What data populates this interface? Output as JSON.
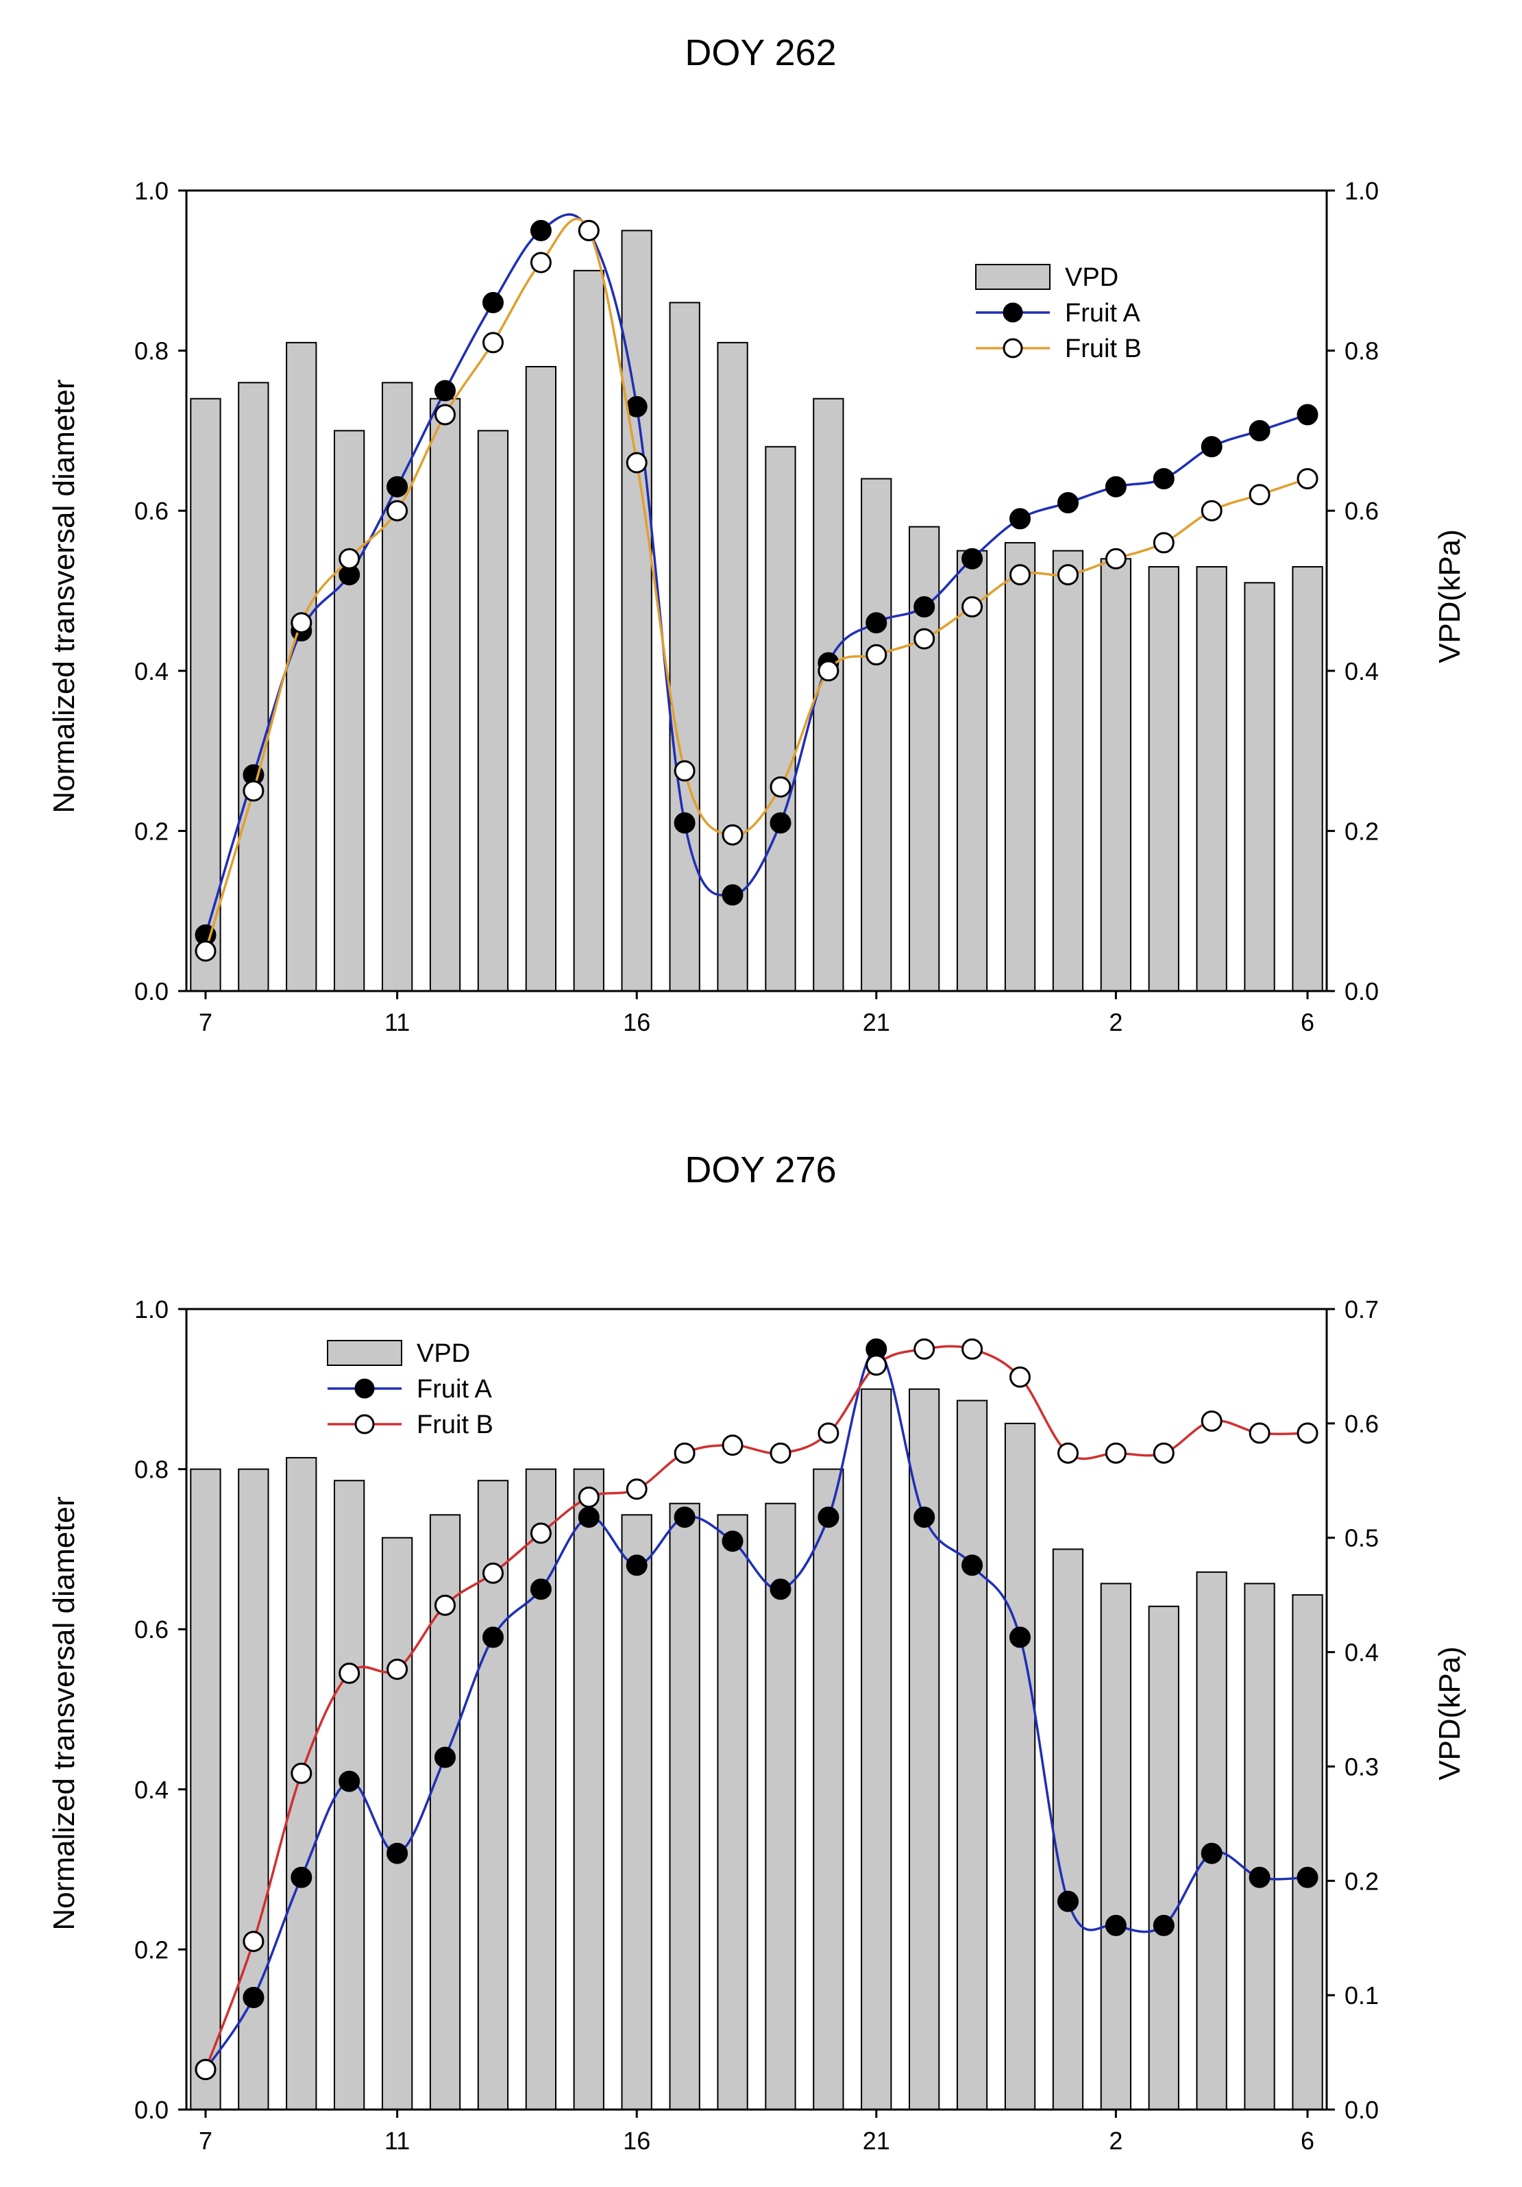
{
  "chart_data": [
    {
      "type": "bar+line",
      "title": "DOY 262",
      "xlabel": "",
      "ylabel": "Normalized transversal diameter",
      "y2label": "VPD(kPa)",
      "ylim": [
        0,
        1.0
      ],
      "y2lim": [
        0,
        1.0
      ],
      "yticks": [
        "0.0",
        "0.2",
        "0.4",
        "0.6",
        "0.8",
        "1.0"
      ],
      "y2ticks": [
        "0.0",
        "0.2",
        "0.4",
        "0.6",
        "0.8",
        "1.0"
      ],
      "xticks": [
        {
          "hour": 7,
          "label": "7"
        },
        {
          "hour": 11,
          "label": "11"
        },
        {
          "hour": 16,
          "label": "16"
        },
        {
          "hour": 21,
          "label": "21"
        },
        {
          "hour": 26,
          "label": "2"
        },
        {
          "hour": 30,
          "label": "6"
        }
      ],
      "xlim": [
        6.6,
        30.4
      ],
      "hours": [
        7,
        8,
        9,
        10,
        11,
        12,
        13,
        14,
        15,
        16,
        17,
        18,
        19,
        20,
        21,
        22,
        23,
        24,
        25,
        26,
        27,
        28,
        29,
        30
      ],
      "legend_position": "upper-right",
      "series": [
        {
          "name": "VPD",
          "kind": "bar",
          "axis": "right",
          "color": "#c8c8c8",
          "values": [
            0.74,
            0.76,
            0.81,
            0.7,
            0.76,
            0.74,
            0.7,
            0.78,
            0.9,
            0.95,
            0.86,
            0.81,
            0.68,
            0.74,
            0.64,
            0.58,
            0.55,
            0.56,
            0.55,
            0.54,
            0.53,
            0.53,
            0.51,
            0.53
          ]
        },
        {
          "name": "Fruit A",
          "kind": "line",
          "axis": "left",
          "color": "#1f2fb5",
          "marker": "filled",
          "values": [
            0.07,
            0.27,
            0.45,
            0.52,
            0.63,
            0.75,
            0.86,
            0.95,
            0.95,
            0.73,
            0.21,
            0.12,
            0.21,
            0.41,
            0.46,
            0.48,
            0.54,
            0.59,
            0.61,
            0.63,
            0.64,
            0.68,
            0.7,
            0.72
          ]
        },
        {
          "name": "Fruit B",
          "kind": "line",
          "axis": "left",
          "color": "#e0a030",
          "marker": "open",
          "values": [
            0.05,
            0.25,
            0.46,
            0.54,
            0.6,
            0.72,
            0.81,
            0.91,
            0.95,
            0.66,
            0.275,
            0.195,
            0.255,
            0.4,
            0.42,
            0.44,
            0.48,
            0.52,
            0.52,
            0.54,
            0.56,
            0.6,
            0.62,
            0.64
          ]
        }
      ]
    },
    {
      "type": "bar+line",
      "title": "DOY 276",
      "xlabel": "",
      "ylabel": "Normalized transversal diameter",
      "y2label": "VPD(kPa)",
      "ylim": [
        0,
        1.0
      ],
      "y2lim": [
        0,
        0.7
      ],
      "yticks": [
        "0.0",
        "0.2",
        "0.4",
        "0.6",
        "0.8",
        "1.0"
      ],
      "y2ticks": [
        "0.0",
        "0.1",
        "0.2",
        "0.3",
        "0.4",
        "0.5",
        "0.6",
        "0.7"
      ],
      "xticks": [
        {
          "hour": 7,
          "label": "7"
        },
        {
          "hour": 11,
          "label": "11"
        },
        {
          "hour": 16,
          "label": "16"
        },
        {
          "hour": 21,
          "label": "21"
        },
        {
          "hour": 26,
          "label": "2"
        },
        {
          "hour": 30,
          "label": "6"
        }
      ],
      "xlim": [
        6.6,
        30.4
      ],
      "hours": [
        7,
        8,
        9,
        10,
        11,
        12,
        13,
        14,
        15,
        16,
        17,
        18,
        19,
        20,
        21,
        22,
        23,
        24,
        25,
        26,
        27,
        28,
        29,
        30
      ],
      "legend_position": "upper-left",
      "series": [
        {
          "name": "VPD",
          "kind": "bar",
          "axis": "right",
          "color": "#c8c8c8",
          "values": [
            0.56,
            0.56,
            0.57,
            0.55,
            0.5,
            0.52,
            0.55,
            0.56,
            0.56,
            0.52,
            0.53,
            0.52,
            0.53,
            0.56,
            0.63,
            0.63,
            0.62,
            0.6,
            0.49,
            0.46,
            0.44,
            0.47,
            0.46,
            0.45
          ]
        },
        {
          "name": "Fruit A",
          "kind": "line",
          "axis": "left",
          "color": "#1f2fb5",
          "marker": "filled",
          "values": [
            0.05,
            0.14,
            0.29,
            0.41,
            0.32,
            0.44,
            0.59,
            0.65,
            0.74,
            0.68,
            0.74,
            0.71,
            0.65,
            0.74,
            0.95,
            0.74,
            0.68,
            0.59,
            0.26,
            0.23,
            0.23,
            0.32,
            0.29,
            0.29
          ]
        },
        {
          "name": "Fruit B",
          "kind": "line",
          "axis": "left",
          "color": "#d03030",
          "marker": "open",
          "values": [
            0.05,
            0.21,
            0.42,
            0.545,
            0.55,
            0.63,
            0.67,
            0.72,
            0.765,
            0.775,
            0.82,
            0.83,
            0.82,
            0.845,
            0.93,
            0.95,
            0.95,
            0.915,
            0.82,
            0.82,
            0.82,
            0.86,
            0.845,
            0.845
          ]
        }
      ]
    }
  ]
}
